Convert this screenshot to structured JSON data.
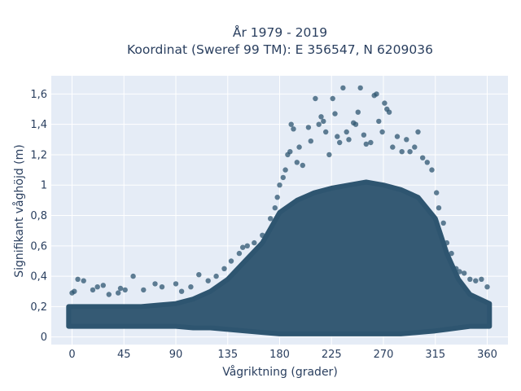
{
  "chart_data": {
    "type": "scatter",
    "title_line1": "År 1979 - 2019",
    "title_line2": "Koordinat (Sweref 99 TM): E 356547, N 6209036",
    "xlabel": "Vågriktning (grader)",
    "ylabel": "Signifikant våghöjd (m)",
    "xlim": [
      -18,
      378
    ],
    "ylim": [
      -0.05,
      1.72
    ],
    "x_ticks": [
      0,
      45,
      90,
      135,
      180,
      225,
      270,
      315,
      360
    ],
    "x_tick_labels": [
      "0",
      "45",
      "90",
      "135",
      "180",
      "225",
      "270",
      "315",
      "360"
    ],
    "y_ticks": [
      0,
      0.2,
      0.4,
      0.6,
      0.8,
      1.0,
      1.2,
      1.4,
      1.6
    ],
    "y_tick_labels": [
      "0",
      "0,2",
      "0,4",
      "0,6",
      "0,8",
      "1",
      "1,2",
      "1,4",
      "1,6"
    ],
    "grid": true,
    "marker_color": "#2e5570",
    "plot_background": "#e5ecf6",
    "dense_band": {
      "x": [
        -3,
        15,
        30,
        45,
        60,
        75,
        90,
        105,
        120,
        135,
        150,
        165,
        180,
        195,
        210,
        225,
        240,
        255,
        270,
        285,
        300,
        315,
        325,
        335,
        345,
        362
      ],
      "y_lower": [
        0.07,
        0.07,
        0.07,
        0.07,
        0.07,
        0.07,
        0.07,
        0.06,
        0.06,
        0.05,
        0.04,
        0.03,
        0.02,
        0.02,
        0.02,
        0.02,
        0.02,
        0.02,
        0.02,
        0.02,
        0.03,
        0.04,
        0.05,
        0.06,
        0.07,
        0.07
      ],
      "y_upper": [
        0.2,
        0.2,
        0.2,
        0.2,
        0.2,
        0.21,
        0.22,
        0.25,
        0.3,
        0.38,
        0.5,
        0.62,
        0.82,
        0.9,
        0.95,
        0.98,
        1.0,
        1.02,
        1.0,
        0.97,
        0.92,
        0.78,
        0.55,
        0.38,
        0.28,
        0.22
      ]
    },
    "points": [
      {
        "x": 0,
        "y": 0.29
      },
      {
        "x": 2,
        "y": 0.3
      },
      {
        "x": 5,
        "y": 0.38
      },
      {
        "x": 10,
        "y": 0.37
      },
      {
        "x": 18,
        "y": 0.31
      },
      {
        "x": 22,
        "y": 0.33
      },
      {
        "x": 27,
        "y": 0.34
      },
      {
        "x": 32,
        "y": 0.28
      },
      {
        "x": 40,
        "y": 0.29
      },
      {
        "x": 42,
        "y": 0.32
      },
      {
        "x": 46,
        "y": 0.31
      },
      {
        "x": 53,
        "y": 0.4
      },
      {
        "x": 62,
        "y": 0.31
      },
      {
        "x": 72,
        "y": 0.35
      },
      {
        "x": 78,
        "y": 0.33
      },
      {
        "x": 90,
        "y": 0.35
      },
      {
        "x": 95,
        "y": 0.3
      },
      {
        "x": 103,
        "y": 0.33
      },
      {
        "x": 110,
        "y": 0.41
      },
      {
        "x": 118,
        "y": 0.37
      },
      {
        "x": 125,
        "y": 0.4
      },
      {
        "x": 132,
        "y": 0.45
      },
      {
        "x": 138,
        "y": 0.5
      },
      {
        "x": 145,
        "y": 0.55
      },
      {
        "x": 148,
        "y": 0.59
      },
      {
        "x": 152,
        "y": 0.6
      },
      {
        "x": 158,
        "y": 0.62
      },
      {
        "x": 165,
        "y": 0.67
      },
      {
        "x": 172,
        "y": 0.78
      },
      {
        "x": 176,
        "y": 0.85
      },
      {
        "x": 178,
        "y": 0.92
      },
      {
        "x": 180,
        "y": 1.0
      },
      {
        "x": 183,
        "y": 1.05
      },
      {
        "x": 185,
        "y": 1.1
      },
      {
        "x": 187,
        "y": 1.2
      },
      {
        "x": 189,
        "y": 1.22
      },
      {
        "x": 190,
        "y": 1.4
      },
      {
        "x": 192,
        "y": 1.37
      },
      {
        "x": 195,
        "y": 1.15
      },
      {
        "x": 197,
        "y": 1.25
      },
      {
        "x": 200,
        "y": 1.13
      },
      {
        "x": 205,
        "y": 1.38
      },
      {
        "x": 207,
        "y": 1.29
      },
      {
        "x": 211,
        "y": 1.57
      },
      {
        "x": 214,
        "y": 1.4
      },
      {
        "x": 216,
        "y": 1.45
      },
      {
        "x": 218,
        "y": 1.42
      },
      {
        "x": 220,
        "y": 1.35
      },
      {
        "x": 223,
        "y": 1.2
      },
      {
        "x": 226,
        "y": 1.57
      },
      {
        "x": 228,
        "y": 1.47
      },
      {
        "x": 230,
        "y": 1.32
      },
      {
        "x": 232,
        "y": 1.28
      },
      {
        "x": 235,
        "y": 1.64
      },
      {
        "x": 238,
        "y": 1.35
      },
      {
        "x": 240,
        "y": 1.3
      },
      {
        "x": 244,
        "y": 1.41
      },
      {
        "x": 246,
        "y": 1.4
      },
      {
        "x": 248,
        "y": 1.48
      },
      {
        "x": 250,
        "y": 1.64
      },
      {
        "x": 253,
        "y": 1.33
      },
      {
        "x": 255,
        "y": 1.27
      },
      {
        "x": 259,
        "y": 1.28
      },
      {
        "x": 262,
        "y": 1.59
      },
      {
        "x": 264,
        "y": 1.6
      },
      {
        "x": 266,
        "y": 1.42
      },
      {
        "x": 269,
        "y": 1.35
      },
      {
        "x": 271,
        "y": 1.54
      },
      {
        "x": 273,
        "y": 1.5
      },
      {
        "x": 275,
        "y": 1.48
      },
      {
        "x": 278,
        "y": 1.25
      },
      {
        "x": 282,
        "y": 1.32
      },
      {
        "x": 286,
        "y": 1.22
      },
      {
        "x": 290,
        "y": 1.3
      },
      {
        "x": 293,
        "y": 1.22
      },
      {
        "x": 297,
        "y": 1.25
      },
      {
        "x": 300,
        "y": 1.35
      },
      {
        "x": 304,
        "y": 1.18
      },
      {
        "x": 308,
        "y": 1.15
      },
      {
        "x": 312,
        "y": 1.1
      },
      {
        "x": 316,
        "y": 0.95
      },
      {
        "x": 318,
        "y": 0.85
      },
      {
        "x": 322,
        "y": 0.75
      },
      {
        "x": 325,
        "y": 0.62
      },
      {
        "x": 329,
        "y": 0.55
      },
      {
        "x": 333,
        "y": 0.45
      },
      {
        "x": 336,
        "y": 0.43
      },
      {
        "x": 340,
        "y": 0.42
      },
      {
        "x": 345,
        "y": 0.38
      },
      {
        "x": 350,
        "y": 0.37
      },
      {
        "x": 355,
        "y": 0.38
      },
      {
        "x": 360,
        "y": 0.33
      }
    ]
  }
}
